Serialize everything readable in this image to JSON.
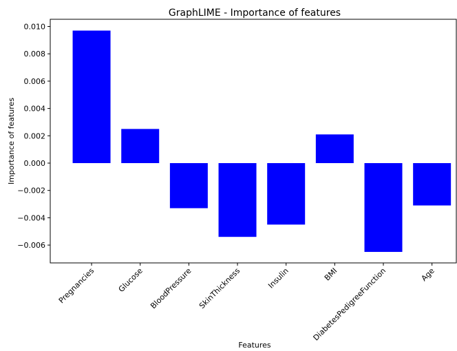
{
  "chart_data": {
    "type": "bar",
    "title": "GraphLIME - Importance of features",
    "xlabel": "Features",
    "ylabel": "Importance of features",
    "categories": [
      "Pregnancies",
      "Glucose",
      "BloodPressure",
      "SkinThickness",
      "Insulin",
      "BMI",
      "DiabetesPedigreeFunction",
      "Age"
    ],
    "values": [
      0.0097,
      0.0025,
      -0.0033,
      -0.0054,
      -0.0045,
      0.0021,
      -0.0065,
      -0.0031
    ],
    "yticks": [
      0.01,
      0.008,
      0.006,
      0.004,
      0.002,
      0.0,
      -0.002,
      -0.004,
      -0.006
    ],
    "ytick_labels": [
      "0.010",
      "0.008",
      "0.006",
      "0.004",
      "0.002",
      "0.000",
      "−0.002",
      "−0.004",
      "−0.006"
    ],
    "ylim": [
      -0.0073,
      0.0105
    ],
    "grid": false,
    "bar_color": "#0000ff"
  }
}
